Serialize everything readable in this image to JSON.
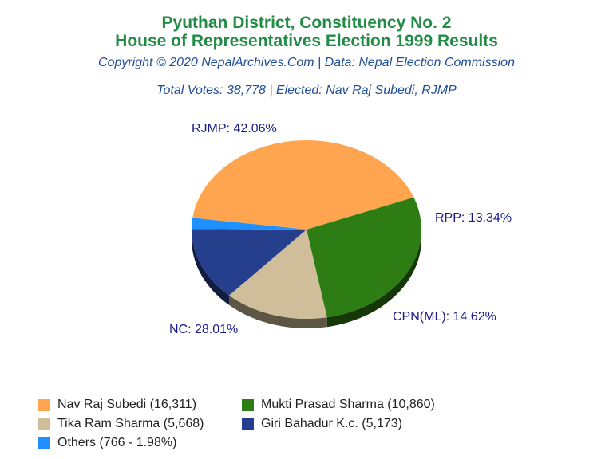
{
  "header": {
    "title_line1": "Pyuthan District, Constituency No. 2",
    "title_line2": "House of Representatives Election 1999 Results",
    "copyright": "Copyright © 2020 NepalArchives.Com | Data: Nepal Election Commission",
    "summary": "Total Votes: 38,778 | Elected: Nav Raj Subedi, RJMP"
  },
  "chart_data": {
    "type": "pie",
    "title": "House of Representatives Election 1999 Results",
    "slices": [
      {
        "party": "RJMP",
        "candidate": "Nav Raj Subedi",
        "votes": 16311,
        "percent": 42.06,
        "color": "#ffa54f",
        "label": "RJMP: 42.06%",
        "legend": "Nav Raj Subedi (16,311)"
      },
      {
        "party": "NC",
        "candidate": "Mukti Prasad Sharma",
        "votes": 10860,
        "percent": 28.01,
        "color": "#2e7d14",
        "label": "NC: 28.01%",
        "legend": "Mukti Prasad Sharma (10,860)"
      },
      {
        "party": "CPN(ML)",
        "candidate": "Tika Ram Sharma",
        "votes": 5668,
        "percent": 14.62,
        "color": "#cfbe99",
        "label": "CPN(ML): 14.62%",
        "legend": "Tika Ram Sharma (5,668)"
      },
      {
        "party": "RPP",
        "candidate": "Giri Bahadur K.c.",
        "votes": 5173,
        "percent": 13.34,
        "color": "#253f8c",
        "label": "RPP: 13.34%",
        "legend": "Giri Bahadur K.c. (5,173)"
      },
      {
        "party": "Others",
        "candidate": "Others",
        "votes": 766,
        "percent": 1.98,
        "color": "#1e90ff",
        "label": "",
        "legend": "Others (766 - 1.98%)"
      }
    ],
    "legend_position": "bottom"
  }
}
